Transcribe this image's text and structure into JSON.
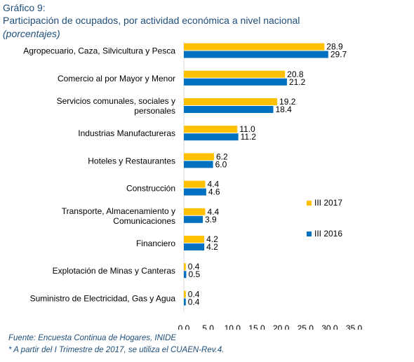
{
  "header": {
    "number": "Gráfico 9:",
    "title": "Participación de ocupados, por actividad económica a nivel nacional",
    "unit": "(porcentajes)"
  },
  "footer": {
    "source": "Fuente: Encuesta Continua de Hogares, INIDE",
    "note": "* A partir del I Trimestre de 2017, se utiliza el CUAEN-Rev.4."
  },
  "colors": {
    "series_2017": "#ffc000",
    "series_2016": "#0070c0",
    "text": "#000000",
    "axis": "#d9d9d9"
  },
  "chart_data": {
    "type": "bar",
    "orientation": "horizontal",
    "categories": [
      "Agropecuario, Caza, Silvicultura y Pesca",
      "Comercio al por Mayor y Menor",
      "Servicios comunales, sociales y personales",
      "Industrias Manufactureras",
      "Hoteles y Restaurantes",
      "Construcción",
      "Transporte, Almacenamiento y Comunicaciones",
      "Financiero",
      "Explotación de Minas y Canteras",
      "Suministro de Electricidad, Gas y Agua"
    ],
    "category_lines": [
      [
        "Agropecuario, Caza, Silvicultura y Pesca"
      ],
      [
        "Comercio al por Mayor y Menor"
      ],
      [
        "Servicios comunales, sociales y",
        "personales"
      ],
      [
        "Industrias Manufactureras"
      ],
      [
        "Hoteles y Restaurantes"
      ],
      [
        "Construcción"
      ],
      [
        "Transporte, Almacenamiento y",
        "Comunicaciones"
      ],
      [
        "Financiero"
      ],
      [
        "Explotación de Minas y Canteras"
      ],
      [
        "Suministro de Electricidad, Gas y Agua"
      ]
    ],
    "series": [
      {
        "name": "III 2017",
        "values": [
          28.9,
          20.8,
          19.2,
          11.0,
          6.2,
          4.4,
          4.4,
          4.2,
          0.4,
          0.4
        ],
        "labels": [
          "28.9",
          "20.8",
          "19.2",
          "11.0",
          "6.2",
          "4.4",
          "4.4",
          "4.2",
          "0.4",
          "0.4"
        ]
      },
      {
        "name": "III 2016",
        "values": [
          29.7,
          21.2,
          18.4,
          11.2,
          6.0,
          4.6,
          3.9,
          4.2,
          0.5,
          0.4
        ],
        "labels": [
          "29.7",
          "21.2",
          "18.4",
          "11.2",
          "6.0",
          "4.6",
          "3.9",
          "4.2",
          "0.5",
          "0.4"
        ]
      }
    ],
    "xlim": [
      0,
      35
    ],
    "xticks": [
      "0.0",
      "5.0",
      "10.0",
      "15.0",
      "20.0",
      "25.0",
      "30.0",
      "35.0"
    ],
    "grid": false,
    "legend": "right"
  }
}
